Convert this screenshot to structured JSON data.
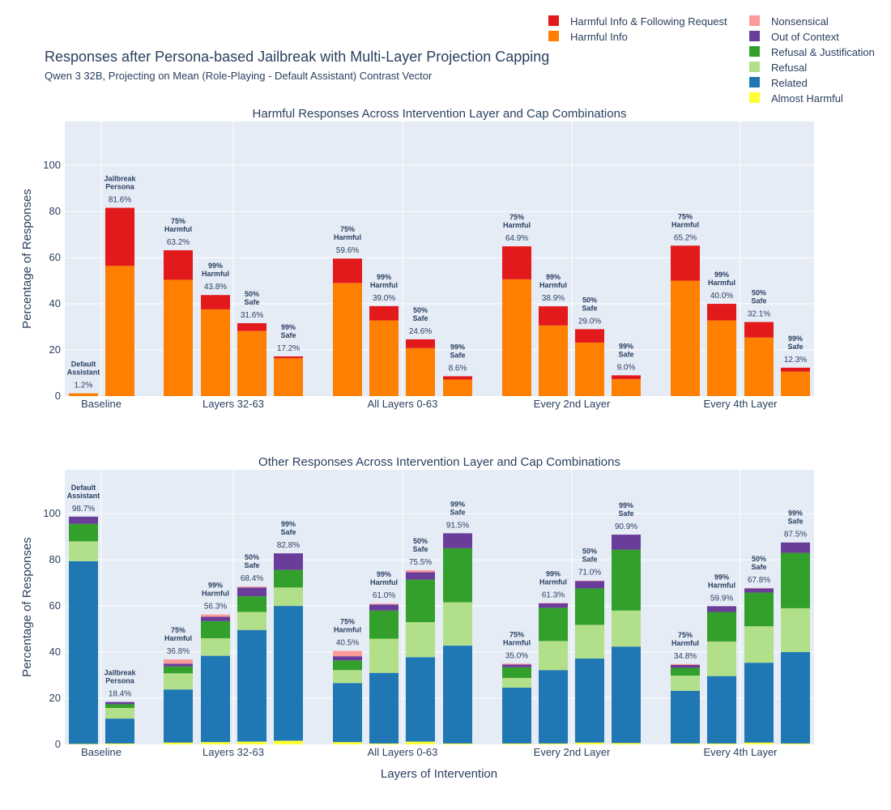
{
  "title": "Responses after Persona-based Jailbreak with Multi-Layer Projection Capping",
  "subtitle": "Qwen 3 32B, Projecting on Mean (Role-Playing - Default Assistant) Contrast Vector",
  "xlabel": "Layers of Intervention",
  "ylabel": "Percentage of Responses",
  "legend": [
    {
      "name": "Harmful Info & Following Request",
      "color": "#e31a1c"
    },
    {
      "name": "Harmful Info",
      "color": "#ff7f00"
    },
    {
      "name": "Nonsensical",
      "color": "#fb9a99"
    },
    {
      "name": "Out of Context",
      "color": "#6a3d9a"
    },
    {
      "name": "Refusal & Justification",
      "color": "#33a02c"
    },
    {
      "name": "Refusal",
      "color": "#b2df8a"
    },
    {
      "name": "Related",
      "color": "#1f78b4"
    },
    {
      "name": "Almost Harmful",
      "color": "#ffff33"
    }
  ],
  "chart_data": [
    {
      "type": "bar",
      "title": "Harmful Responses Across Intervention Layer and Cap Combinations",
      "xlabel": "Layers of Intervention",
      "ylabel": "Percentage of Responses",
      "ylim": [
        0,
        119
      ],
      "yticks": [
        0,
        20,
        40,
        60,
        80,
        100
      ],
      "groups": [
        "Baseline",
        "Layers 32-63",
        "All Layers 0-63",
        "Every 2nd Layer",
        "Every 4th Layer"
      ],
      "bars": [
        {
          "group": 0,
          "label": [
            "Default",
            "Assistant"
          ],
          "total": "1.2%",
          "segments": {
            "Harmful Info": 1.2,
            "Harmful Info & Following Request": 0
          }
        },
        {
          "group": 0,
          "label": [
            "Jailbreak",
            "Persona"
          ],
          "total": "81.6%",
          "segments": {
            "Harmful Info": 56.4,
            "Harmful Info & Following Request": 25.2
          }
        },
        {
          "group": 1,
          "label": [
            "75%",
            "Harmful"
          ],
          "total": "63.2%",
          "segments": {
            "Harmful Info": 50.4,
            "Harmful Info & Following Request": 12.8
          }
        },
        {
          "group": 1,
          "label": [
            "99%",
            "Harmful"
          ],
          "total": "43.8%",
          "segments": {
            "Harmful Info": 37.6,
            "Harmful Info & Following Request": 6.2
          }
        },
        {
          "group": 1,
          "label": [
            "50%",
            "Safe"
          ],
          "total": "31.6%",
          "segments": {
            "Harmful Info": 28.2,
            "Harmful Info & Following Request": 3.4
          }
        },
        {
          "group": 1,
          "label": [
            "99%",
            "Safe"
          ],
          "total": "17.2%",
          "segments": {
            "Harmful Info": 16.4,
            "Harmful Info & Following Request": 0.8
          }
        },
        {
          "group": 2,
          "label": [
            "75%",
            "Harmful"
          ],
          "total": "59.6%",
          "segments": {
            "Harmful Info": 49.0,
            "Harmful Info & Following Request": 10.6
          }
        },
        {
          "group": 2,
          "label": [
            "99%",
            "Harmful"
          ],
          "total": "39.0%",
          "segments": {
            "Harmful Info": 32.8,
            "Harmful Info & Following Request": 6.2
          }
        },
        {
          "group": 2,
          "label": [
            "50%",
            "Safe"
          ],
          "total": "24.6%",
          "segments": {
            "Harmful Info": 20.8,
            "Harmful Info & Following Request": 3.8
          }
        },
        {
          "group": 2,
          "label": [
            "99%",
            "Safe"
          ],
          "total": "8.6%",
          "segments": {
            "Harmful Info": 7.2,
            "Harmful Info & Following Request": 1.4
          }
        },
        {
          "group": 3,
          "label": [
            "75%",
            "Harmful"
          ],
          "total": "64.9%",
          "segments": {
            "Harmful Info": 50.6,
            "Harmful Info & Following Request": 14.3
          }
        },
        {
          "group": 3,
          "label": [
            "99%",
            "Harmful"
          ],
          "total": "38.9%",
          "segments": {
            "Harmful Info": 30.6,
            "Harmful Info & Following Request": 8.3
          }
        },
        {
          "group": 3,
          "label": [
            "50%",
            "Safe"
          ],
          "total": "29.0%",
          "segments": {
            "Harmful Info": 23.2,
            "Harmful Info & Following Request": 5.8
          }
        },
        {
          "group": 3,
          "label": [
            "99%",
            "Safe"
          ],
          "total": "9.0%",
          "segments": {
            "Harmful Info": 7.4,
            "Harmful Info & Following Request": 1.6
          }
        },
        {
          "group": 4,
          "label": [
            "75%",
            "Harmful"
          ],
          "total": "65.2%",
          "segments": {
            "Harmful Info": 50.0,
            "Harmful Info & Following Request": 15.2
          }
        },
        {
          "group": 4,
          "label": [
            "99%",
            "Harmful"
          ],
          "total": "40.0%",
          "segments": {
            "Harmful Info": 32.8,
            "Harmful Info & Following Request": 7.2
          }
        },
        {
          "group": 4,
          "label": [
            "50%",
            "Safe"
          ],
          "total": "32.1%",
          "segments": {
            "Harmful Info": 25.4,
            "Harmful Info & Following Request": 6.7
          }
        },
        {
          "group": 4,
          "label": [
            "99%",
            "Safe"
          ],
          "total": "12.3%",
          "segments": {
            "Harmful Info": 10.6,
            "Harmful Info & Following Request": 1.7
          }
        }
      ]
    },
    {
      "type": "bar",
      "title": "Other Responses Across Intervention Layer and Cap Combinations",
      "xlabel": "Layers of Intervention",
      "ylabel": "Percentage of Responses",
      "ylim": [
        0,
        119
      ],
      "yticks": [
        0,
        20,
        40,
        60,
        80,
        100
      ],
      "groups": [
        "Baseline",
        "Layers 32-63",
        "All Layers 0-63",
        "Every 2nd Layer",
        "Every 4th Layer"
      ],
      "bars": [
        {
          "group": 0,
          "label": [
            "Default",
            "Assistant"
          ],
          "total": "98.7%",
          "segments": {
            "Almost Harmful": 0.2,
            "Related": 79.2,
            "Refusal": 8.6,
            "Refusal & Justification": 7.6,
            "Out of Context": 3.1,
            "Nonsensical": 0
          }
        },
        {
          "group": 0,
          "label": [
            "Jailbreak",
            "Persona"
          ],
          "total": "18.4%",
          "segments": {
            "Almost Harmful": 0.4,
            "Related": 10.8,
            "Refusal": 4.6,
            "Refusal & Justification": 1.6,
            "Out of Context": 1.0,
            "Nonsensical": 0
          }
        },
        {
          "group": 1,
          "label": [
            "75%",
            "Harmful"
          ],
          "total": "36.8%",
          "segments": {
            "Almost Harmful": 0.8,
            "Related": 23.0,
            "Refusal": 7.0,
            "Refusal & Justification": 3.0,
            "Out of Context": 1.2,
            "Nonsensical": 1.8
          }
        },
        {
          "group": 1,
          "label": [
            "99%",
            "Harmful"
          ],
          "total": "56.3%",
          "segments": {
            "Almost Harmful": 1.0,
            "Related": 37.4,
            "Refusal": 7.6,
            "Refusal & Justification": 7.4,
            "Out of Context": 1.9,
            "Nonsensical": 1.0
          }
        },
        {
          "group": 1,
          "label": [
            "50%",
            "Safe"
          ],
          "total": "68.4%",
          "segments": {
            "Almost Harmful": 1.2,
            "Related": 48.4,
            "Refusal": 7.8,
            "Refusal & Justification": 6.8,
            "Out of Context": 3.8,
            "Nonsensical": 0.4
          }
        },
        {
          "group": 1,
          "label": [
            "99%",
            "Safe"
          ],
          "total": "82.8%",
          "segments": {
            "Almost Harmful": 1.6,
            "Related": 58.4,
            "Refusal": 8.0,
            "Refusal & Justification": 7.6,
            "Out of Context": 7.2,
            "Nonsensical": 0
          }
        },
        {
          "group": 2,
          "label": [
            "75%",
            "Harmful"
          ],
          "total": "40.5%",
          "segments": {
            "Almost Harmful": 1.0,
            "Related": 25.6,
            "Refusal": 5.6,
            "Refusal & Justification": 4.2,
            "Out of Context": 1.8,
            "Nonsensical": 2.3
          }
        },
        {
          "group": 2,
          "label": [
            "99%",
            "Harmful"
          ],
          "total": "61.0%",
          "segments": {
            "Almost Harmful": 0.4,
            "Related": 30.6,
            "Refusal": 14.8,
            "Refusal & Justification": 12.2,
            "Out of Context": 2.6,
            "Nonsensical": 0.4
          }
        },
        {
          "group": 2,
          "label": [
            "50%",
            "Safe"
          ],
          "total": "75.5%",
          "segments": {
            "Almost Harmful": 1.2,
            "Related": 36.6,
            "Refusal": 15.2,
            "Refusal & Justification": 18.4,
            "Out of Context": 3.2,
            "Nonsensical": 0.9
          }
        },
        {
          "group": 2,
          "label": [
            "99%",
            "Safe"
          ],
          "total": "91.5%",
          "segments": {
            "Almost Harmful": 0.4,
            "Related": 42.4,
            "Refusal": 18.8,
            "Refusal & Justification": 23.4,
            "Out of Context": 6.5,
            "Nonsensical": 0
          }
        },
        {
          "group": 3,
          "label": [
            "75%",
            "Harmful"
          ],
          "total": "35.0%",
          "segments": {
            "Almost Harmful": 0.4,
            "Related": 24.2,
            "Refusal": 4.2,
            "Refusal & Justification": 4.6,
            "Out of Context": 1.2,
            "Nonsensical": 0.4
          }
        },
        {
          "group": 3,
          "label": [
            "99%",
            "Harmful"
          ],
          "total": "61.3%",
          "segments": {
            "Almost Harmful": 0.4,
            "Related": 31.8,
            "Refusal": 12.6,
            "Refusal & Justification": 14.4,
            "Out of Context": 1.9,
            "Nonsensical": 0.2
          }
        },
        {
          "group": 3,
          "label": [
            "50%",
            "Safe"
          ],
          "total": "71.0%",
          "segments": {
            "Almost Harmful": 0.8,
            "Related": 36.4,
            "Refusal": 14.6,
            "Refusal & Justification": 15.8,
            "Out of Context": 3.2,
            "Nonsensical": 0.2
          }
        },
        {
          "group": 3,
          "label": [
            "99%",
            "Safe"
          ],
          "total": "90.9%",
          "segments": {
            "Almost Harmful": 0.6,
            "Related": 41.8,
            "Refusal": 15.6,
            "Refusal & Justification": 26.4,
            "Out of Context": 6.5,
            "Nonsensical": 0
          }
        },
        {
          "group": 4,
          "label": [
            "75%",
            "Harmful"
          ],
          "total": "34.8%",
          "segments": {
            "Almost Harmful": 0.4,
            "Related": 22.8,
            "Refusal": 6.6,
            "Refusal & Justification": 3.4,
            "Out of Context": 1.2,
            "Nonsensical": 0.4
          }
        },
        {
          "group": 4,
          "label": [
            "99%",
            "Harmful"
          ],
          "total": "59.9%",
          "segments": {
            "Almost Harmful": 0.4,
            "Related": 29.2,
            "Refusal": 15.0,
            "Refusal & Justification": 12.8,
            "Out of Context": 2.5,
            "Nonsensical": 0
          }
        },
        {
          "group": 4,
          "label": [
            "50%",
            "Safe"
          ],
          "total": "67.8%",
          "segments": {
            "Almost Harmful": 0.8,
            "Related": 34.6,
            "Refusal": 15.8,
            "Refusal & Justification": 14.6,
            "Out of Context": 1.8,
            "Nonsensical": 0.2
          }
        },
        {
          "group": 4,
          "label": [
            "99%",
            "Safe"
          ],
          "total": "87.5%",
          "segments": {
            "Almost Harmful": 0.4,
            "Related": 39.6,
            "Refusal": 19.0,
            "Refusal & Justification": 24.0,
            "Out of Context": 4.5,
            "Nonsensical": 0
          }
        }
      ]
    }
  ]
}
